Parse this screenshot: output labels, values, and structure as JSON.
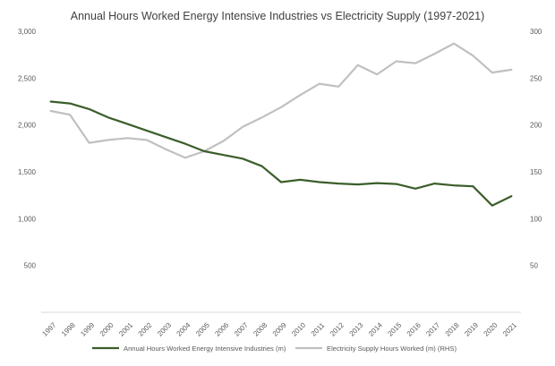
{
  "chart_data": {
    "type": "line",
    "title": "Annual Hours Worked Energy Intensive Industries vs Electricity Supply (1997-2021)",
    "x": [
      "1997",
      "1998",
      "1999",
      "2000",
      "2001",
      "2002",
      "2003",
      "2004",
      "2005",
      "2006",
      "2007",
      "2008",
      "2009",
      "2010",
      "2011",
      "2012",
      "2013",
      "2014",
      "2015",
      "2016",
      "2017",
      "2018",
      "2019",
      "2020",
      "2021"
    ],
    "left_axis": {
      "ylim": [
        0,
        3000
      ],
      "ticks": [
        "",
        "500",
        "1,000",
        "1,500",
        "2,000",
        "2,500",
        "3,000"
      ]
    },
    "right_axis": {
      "ylim": [
        0,
        300
      ],
      "ticks": [
        "",
        "50",
        "100",
        "150",
        "200",
        "250",
        "300"
      ]
    },
    "grid": false,
    "legend_position": "bottom",
    "series": [
      {
        "name": "Annual Hours Worked Energy Intensive Industries (m)",
        "axis": "left",
        "color": "#3b5e2b",
        "values": [
          2250,
          2230,
          2170,
          2080,
          2010,
          1940,
          1870,
          1800,
          1720,
          1680,
          1640,
          1560,
          1390,
          1415,
          1390,
          1375,
          1365,
          1380,
          1370,
          1320,
          1375,
          1355,
          1345,
          1140,
          1240
        ]
      },
      {
        "name": "Electricity Supply Hours Worked (m) (RHS)",
        "axis": "right",
        "color": "#c0c0c0",
        "values": [
          215,
          211,
          181,
          184,
          186,
          184,
          174,
          165,
          172,
          183,
          198,
          208,
          219,
          232,
          244,
          241,
          264,
          254,
          268,
          266,
          276,
          287,
          274,
          256,
          259
        ]
      }
    ]
  }
}
